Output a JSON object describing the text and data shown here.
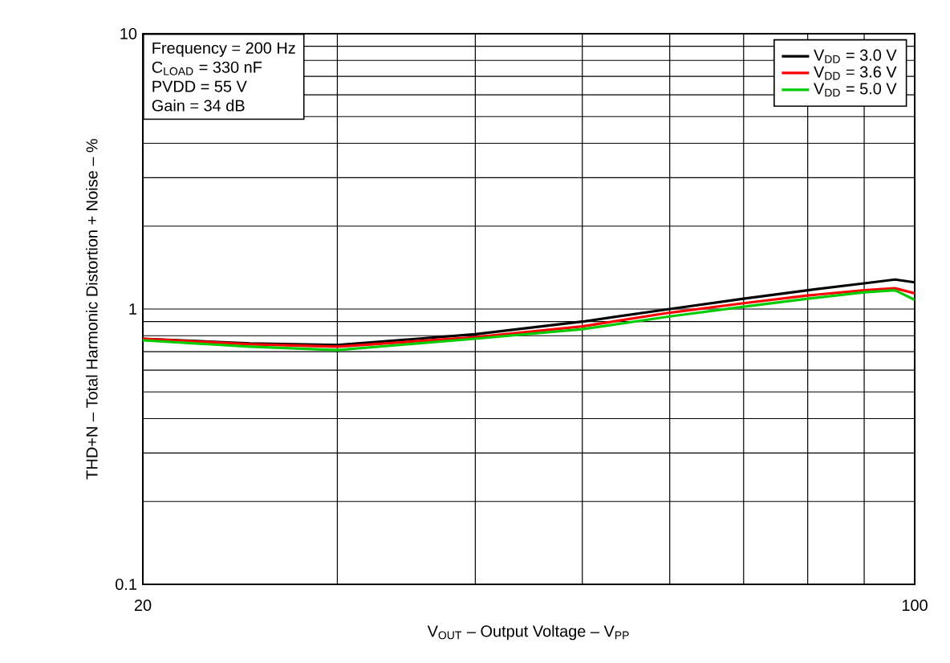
{
  "chart_data": {
    "type": "line",
    "xlabel": "V$_{OUT}$ – Output Voltage – V$_{PP}$",
    "ylabel": "THD+N – Total Harmonic Distortion + Noise – %",
    "annotations": [
      "Frequency = 200 Hz",
      "C$_{LOAD}$ = 330 nF",
      "PVDD = 55 V",
      "Gain = 34 dB"
    ],
    "log": "xy",
    "xlim": [
      20,
      100
    ],
    "ylim": [
      0.1,
      10
    ],
    "xticks": [
      20,
      {
        "value": 30,
        "label": null
      },
      {
        "value": 40,
        "label": null
      },
      {
        "value": 50,
        "label": null
      },
      {
        "value": 60,
        "label": null
      },
      {
        "value": 70,
        "label": null
      },
      {
        "value": 80,
        "label": null
      },
      {
        "value": 90,
        "label": null
      },
      100
    ],
    "yticks": [
      0.1,
      {
        "value": 0.2,
        "label": null
      },
      {
        "value": 0.3,
        "label": null
      },
      {
        "value": 0.4,
        "label": null
      },
      {
        "value": 0.5,
        "label": null
      },
      {
        "value": 0.6,
        "label": null
      },
      {
        "value": 0.7,
        "label": null
      },
      {
        "value": 0.8,
        "label": null
      },
      {
        "value": 0.9,
        "label": null
      },
      1,
      {
        "value": 2,
        "label": null
      },
      {
        "value": 3,
        "label": null
      },
      {
        "value": 4,
        "label": null
      },
      {
        "value": 5,
        "label": null
      },
      {
        "value": 6,
        "label": null
      },
      {
        "value": 7,
        "label": null
      },
      {
        "value": 8,
        "label": null
      },
      {
        "value": 9,
        "label": null
      },
      10
    ],
    "grid": true,
    "legend": "top right",
    "marker": "none",
    "line_style": "solid",
    "x": [
      20,
      25,
      30,
      40,
      50,
      60,
      70,
      80,
      90,
      96,
      100
    ],
    "series": [
      {
        "name": "V$_{DD}$ = 3.0 V",
        "color": "#000000",
        "values": [
          0.78,
          0.75,
          0.74,
          0.81,
          0.9,
          1.0,
          1.09,
          1.17,
          1.24,
          1.28,
          1.25
        ]
      },
      {
        "name": "V$_{DD}$ = 3.6 V",
        "color": "#ff0000",
        "values": [
          0.78,
          0.745,
          0.73,
          0.79,
          0.865,
          0.97,
          1.05,
          1.12,
          1.17,
          1.19,
          1.14
        ]
      },
      {
        "name": "V$_{DD}$ = 5.0 V",
        "color": "#00cc00",
        "values": [
          0.77,
          0.73,
          0.71,
          0.78,
          0.845,
          0.94,
          1.02,
          1.09,
          1.15,
          1.17,
          1.08
        ]
      }
    ]
  }
}
